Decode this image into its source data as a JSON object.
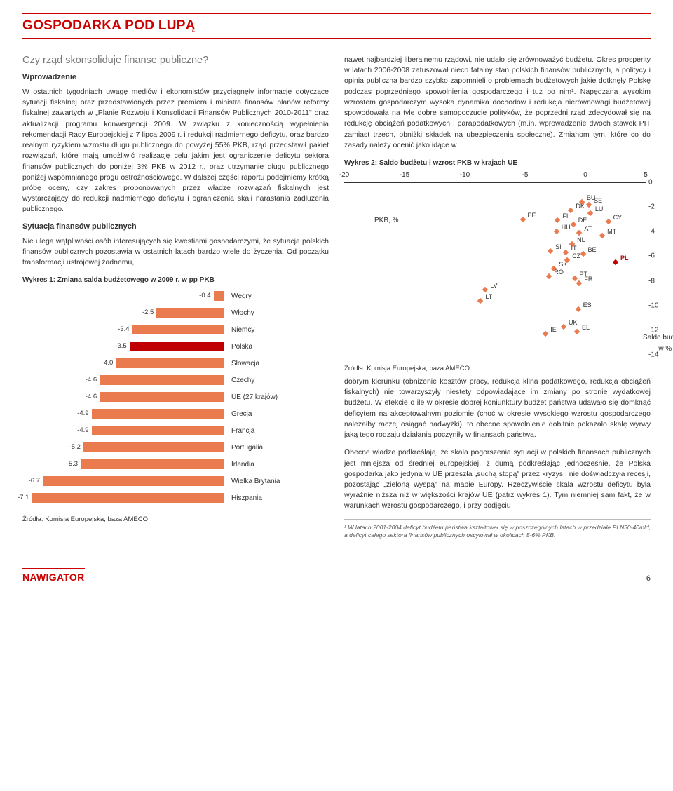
{
  "header": {
    "title": "GOSPODARKA POD LUPĄ"
  },
  "subtitle": "Czy rząd skonsoliduje finanse publiczne?",
  "left": {
    "intro_h": "Wprowadzenie",
    "intro_p": "W ostatnich tygodniach uwagę mediów i ekonomistów przyciągnęły informacje dotyczące sytuacji fiskalnej oraz przedstawionych przez premiera i ministra finansów planów reformy fiskalnej zawartych w „Planie Rozwoju i Konsolidacji Finansów Publicznych 2010-2011\" oraz aktualizacji programu konwergencji 2009. W związku z koniecznością wypełnienia rekomendacji Rady Europejskiej z 7 lipca 2009 r. i redukcji nadmiernego deficytu, oraz bardzo realnym ryzykiem wzrostu długu publicznego do powyżej 55% PKB, rząd przedstawił pakiet rozwiązań, które mają umożliwić realizację celu jakim jest ograniczenie deficytu sektora finansów publicznych do poniżej 3% PKB w 2012 r., oraz utrzymanie długu publicznego poniżej wspomnianego progu ostrożnościowego. W dalszej części raportu podejmiemy krótką próbę oceny, czy zakres proponowanych przez władze rozwiązań fiskalnych jest wystarczający do redukcji nadmiernego deficytu i ograniczenia skali narastania zadłużenia publicznego.",
    "sit_h": "Sytuacja finansów publicznych",
    "sit_p": "Nie ulega wątpliwości osób interesujących się kwestiami gospodarczymi, że sytuacja polskich finansów publicznych pozostawia w ostatnich latach bardzo wiele do życzenia. Od początku transformacji ustrojowej żadnemu,"
  },
  "right": {
    "p1": "nawet najbardziej liberalnemu rządowi, nie udało się zrównoważyć budżetu. Okres prosperity w latach 2006-2008 zatuszował nieco fatalny stan polskich finansów publicznych, a politycy i opinia publiczna bardzo szybko zapomnieli o problemach budżetowych jakie dotknęły Polskę podczas poprzedniego spowolnienia gospodarczego i tuż po nim¹. Napędzana wysokim wzrostem gospodarczym wysoka dynamika dochodów i redukcja nierównowagi budżetowej spowodowała na tyle dobre samopoczucie polityków, że poprzedni rząd zdecydował się na redukcję obciążeń podatkowych i parapodatkowych (m.in. wprowadzenie dwóch stawek PIT zamiast trzech, obniżki składek na ubezpieczenia społeczne). Zmianom tym, które co do zasady należy ocenić jako idące w",
    "p2": "dobrym kierunku (obniżenie kosztów pracy, redukcja klina podatkowego, redukcja obciążeń fiskalnych) nie towarzyszyły niestety odpowiadające im zmiany po stronie wydatkowej budżetu. W efekcie o ile w okresie dobrej koniunktury budżet państwa udawało się domknąć deficytem na akceptowalnym poziomie (choć w okresie wysokiego wzrostu gospodarczego należałby raczej osiągać nadwyżki), to obecne spowolnienie dobitnie pokazało skalę wyrwy jaką tego rodzaju działania poczyniły w finansach państwa.",
    "p3": "Obecne władze podkreślają, że skala pogorszenia sytuacji w polskich finansach publicznych jest mniejsza od średniej europejskiej, z dumą podkreślając jednocześnie, że Polska gospodarka jako jedyna w UE przeszła „suchą stopą\" przez kryzys i nie doświadczyła recesji, pozostając „zieloną wyspą\" na mapie Europy. Rzeczywiście skala wzrostu deficytu była wyraźnie niższa niż w większości krajów UE (patrz wykres 1). Tym niemniej sam fakt, że w warunkach wzrostu gospodarczego, i przy podjęciu"
  },
  "chart1": {
    "title": "Wykres 1: Zmiana salda budżetowego w 2009 r. w pp PKB",
    "type": "bar",
    "min": -7.5,
    "max": 0,
    "bar_color": "#e97b4f",
    "bar_color_highlight": "#c00000",
    "data": [
      {
        "label": "Węgry",
        "value": -0.4,
        "hl": false
      },
      {
        "label": "Włochy",
        "value": -2.5,
        "hl": false
      },
      {
        "label": "Niemcy",
        "value": -3.4,
        "hl": false
      },
      {
        "label": "Polska",
        "value": -3.5,
        "hl": true
      },
      {
        "label": "Słowacja",
        "value": -4.0,
        "hl": false
      },
      {
        "label": "Czechy",
        "value": -4.6,
        "hl": false
      },
      {
        "label": "UE (27 krajów)",
        "value": -4.6,
        "hl": false
      },
      {
        "label": "Grecja",
        "value": -4.9,
        "hl": false
      },
      {
        "label": "Francja",
        "value": -4.9,
        "hl": false
      },
      {
        "label": "Portugalia",
        "value": -5.2,
        "hl": false
      },
      {
        "label": "Irlandia",
        "value": -5.3,
        "hl": false
      },
      {
        "label": "Wielka Brytania",
        "value": -6.7,
        "hl": false
      },
      {
        "label": "Hiszpania",
        "value": -7.1,
        "hl": false
      }
    ],
    "source": "Źródła: Komisja Europejska, baza AMECO"
  },
  "chart2": {
    "title": "Wykres 2: Saldo budżetu i wzrost PKB w krajach UE",
    "type": "scatter",
    "xlim": [
      -20,
      5
    ],
    "ylim": [
      -14,
      0
    ],
    "xticks": [
      -20,
      -15,
      -10,
      -5,
      0,
      5
    ],
    "yticks": [
      0,
      -2,
      -4,
      -6,
      -8,
      -10,
      -12,
      -14
    ],
    "xlabel": "PKB, %",
    "ylabel1": "Saldo budżetu",
    "ylabel2": "w % PKB",
    "marker_color": "#e97b4f",
    "marker_color_hl": "#c00000",
    "points": [
      {
        "code": "BU",
        "x": -0.3,
        "y": -1.6
      },
      {
        "code": "SE",
        "x": 0.3,
        "y": -1.8
      },
      {
        "code": "DK",
        "x": -1.2,
        "y": -2.3
      },
      {
        "code": "LU",
        "x": 0.4,
        "y": -2.5
      },
      {
        "code": "FI",
        "x": -2.3,
        "y": -3.1
      },
      {
        "code": "EE",
        "x": -5.2,
        "y": -3.0
      },
      {
        "code": "DE",
        "x": -1.0,
        "y": -3.4
      },
      {
        "code": "CY",
        "x": 1.9,
        "y": -3.2
      },
      {
        "code": "HU",
        "x": -2.4,
        "y": -4.0
      },
      {
        "code": "AT",
        "x": -0.5,
        "y": -4.1
      },
      {
        "code": "MT",
        "x": 1.4,
        "y": -4.3
      },
      {
        "code": "NL",
        "x": -1.1,
        "y": -5.0
      },
      {
        "code": "SI",
        "x": -2.9,
        "y": -5.6
      },
      {
        "code": "IT",
        "x": -1.6,
        "y": -5.7
      },
      {
        "code": "BE",
        "x": -0.2,
        "y": -5.8
      },
      {
        "code": "CZ",
        "x": -1.5,
        "y": -6.3
      },
      {
        "code": "PL",
        "x": 2.5,
        "y": -6.5,
        "hl": true
      },
      {
        "code": "SK",
        "x": -2.6,
        "y": -7.0
      },
      {
        "code": "RO",
        "x": -3.0,
        "y": -7.6
      },
      {
        "code": "PT",
        "x": -0.9,
        "y": -7.8
      },
      {
        "code": "FR",
        "x": -0.5,
        "y": -8.2
      },
      {
        "code": "LV",
        "x": -8.3,
        "y": -8.7
      },
      {
        "code": "LT",
        "x": -8.7,
        "y": -9.6
      },
      {
        "code": "ES",
        "x": -0.6,
        "y": -10.3
      },
      {
        "code": "UK",
        "x": -1.8,
        "y": -11.7
      },
      {
        "code": "EL",
        "x": -0.7,
        "y": -12.1
      },
      {
        "code": "IE",
        "x": -3.3,
        "y": -12.3
      }
    ],
    "source": "Źródła: Komisja Europejska, baza AMECO"
  },
  "footnote": "¹ W latach 2001-2004 deficyt budżetu państwa kształtował się w poszczególnych latach w przedziale PLN30-40mld, a deficyt całego sektora finansów publicznych oscylował w okolicach 5-6% PKB.",
  "footer": {
    "brand": "NAWIGATOR",
    "page": "6"
  }
}
